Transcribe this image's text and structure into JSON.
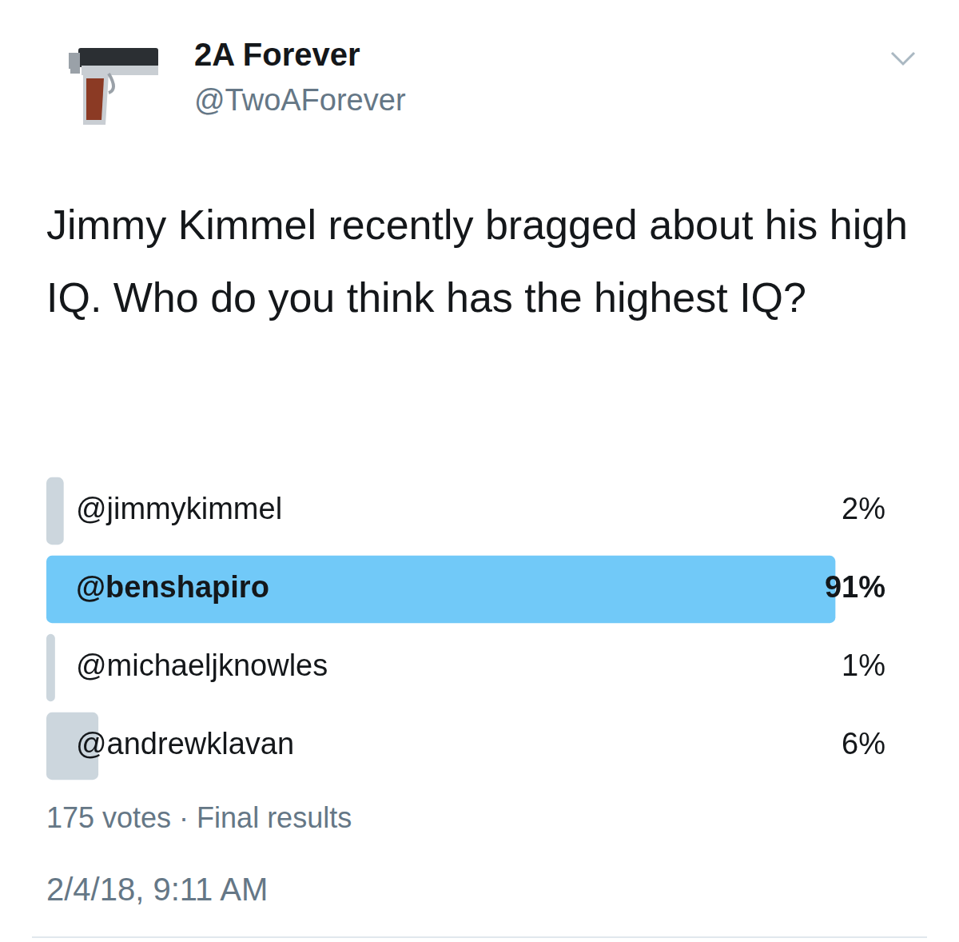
{
  "header": {
    "name": "2A Forever",
    "handle": "@TwoAForever"
  },
  "chart_data": {
    "type": "bar",
    "orientation": "horizontal",
    "title": "Jimmy Kimmel recently bragged about his high IQ.  Who do you think has the highest IQ?",
    "categories": [
      "@jimmykimmel",
      "@benshapiro",
      "@michaeljknowles",
      "@andrewklavan"
    ],
    "values": [
      2,
      91,
      1,
      6
    ],
    "value_labels": [
      "2%",
      "91%",
      "1%",
      "6%"
    ],
    "colors": [
      "#ccd6dd",
      "#71c9f8",
      "#ccd6dd",
      "#ccd6dd"
    ],
    "xlim": [
      0,
      100
    ],
    "grid": false,
    "tick_labels": false,
    "data_labels": true
  },
  "footer": {
    "votes": "175 votes · Final results",
    "timestamp": "2/4/18, 9:11 AM"
  }
}
